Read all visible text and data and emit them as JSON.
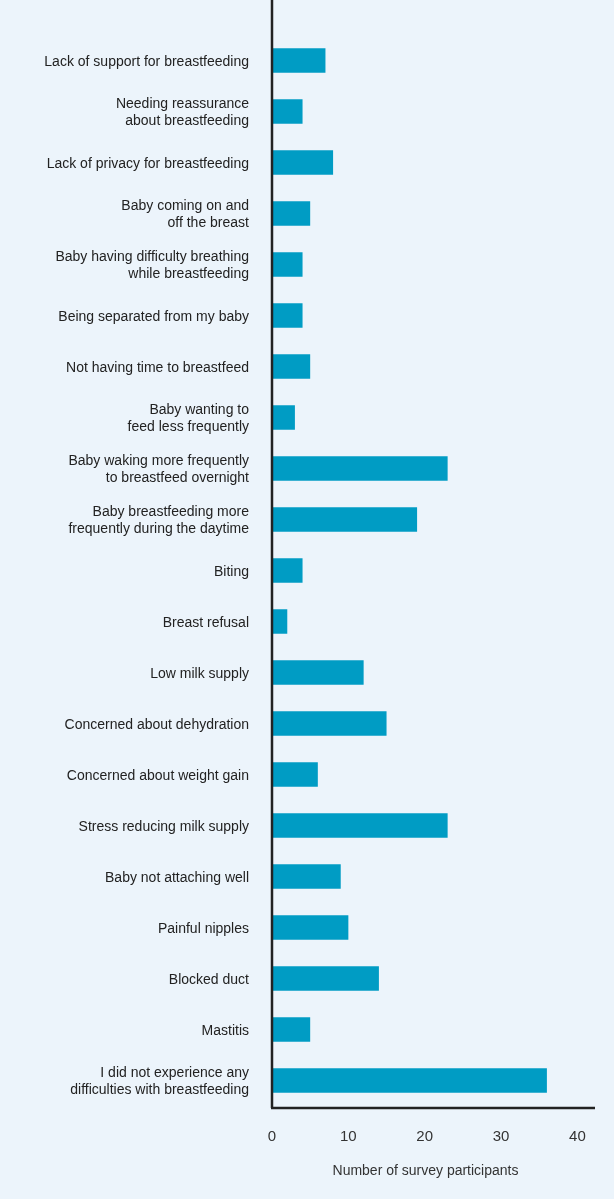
{
  "chart_data": {
    "type": "bar",
    "orientation": "horizontal",
    "xlabel": "Number of survey participants",
    "categories": [
      "Lack of support for breastfeeding",
      "Needing reassurance\nabout breastfeeding",
      "Lack of privacy for breastfeeding",
      "Baby coming on and\noff the breast",
      "Baby having difficulty breathing\nwhile breastfeeding",
      "Being separated from my baby",
      "Not having time to breastfeed",
      "Baby wanting to\nfeed less frequently",
      "Baby waking more frequently\nto breastfeed overnight",
      "Baby breastfeeding more\nfrequently during the daytime",
      "Biting",
      "Breast refusal",
      "Low milk supply",
      "Concerned about dehydration",
      "Concerned about weight gain",
      "Stress reducing milk supply",
      "Baby not attaching well",
      "Painful nipples",
      "Blocked duct",
      "Mastitis",
      "I did not experience any\ndifficulties with breastfeeding"
    ],
    "values": [
      7,
      4,
      8,
      5,
      4,
      4,
      5,
      3,
      23,
      19,
      4,
      2,
      12,
      15,
      6,
      23,
      9,
      10,
      14,
      5,
      36
    ],
    "color": "#009cc4",
    "xlim": [
      0,
      42.3
    ],
    "xticks": [
      0,
      10,
      20,
      30,
      40
    ]
  }
}
